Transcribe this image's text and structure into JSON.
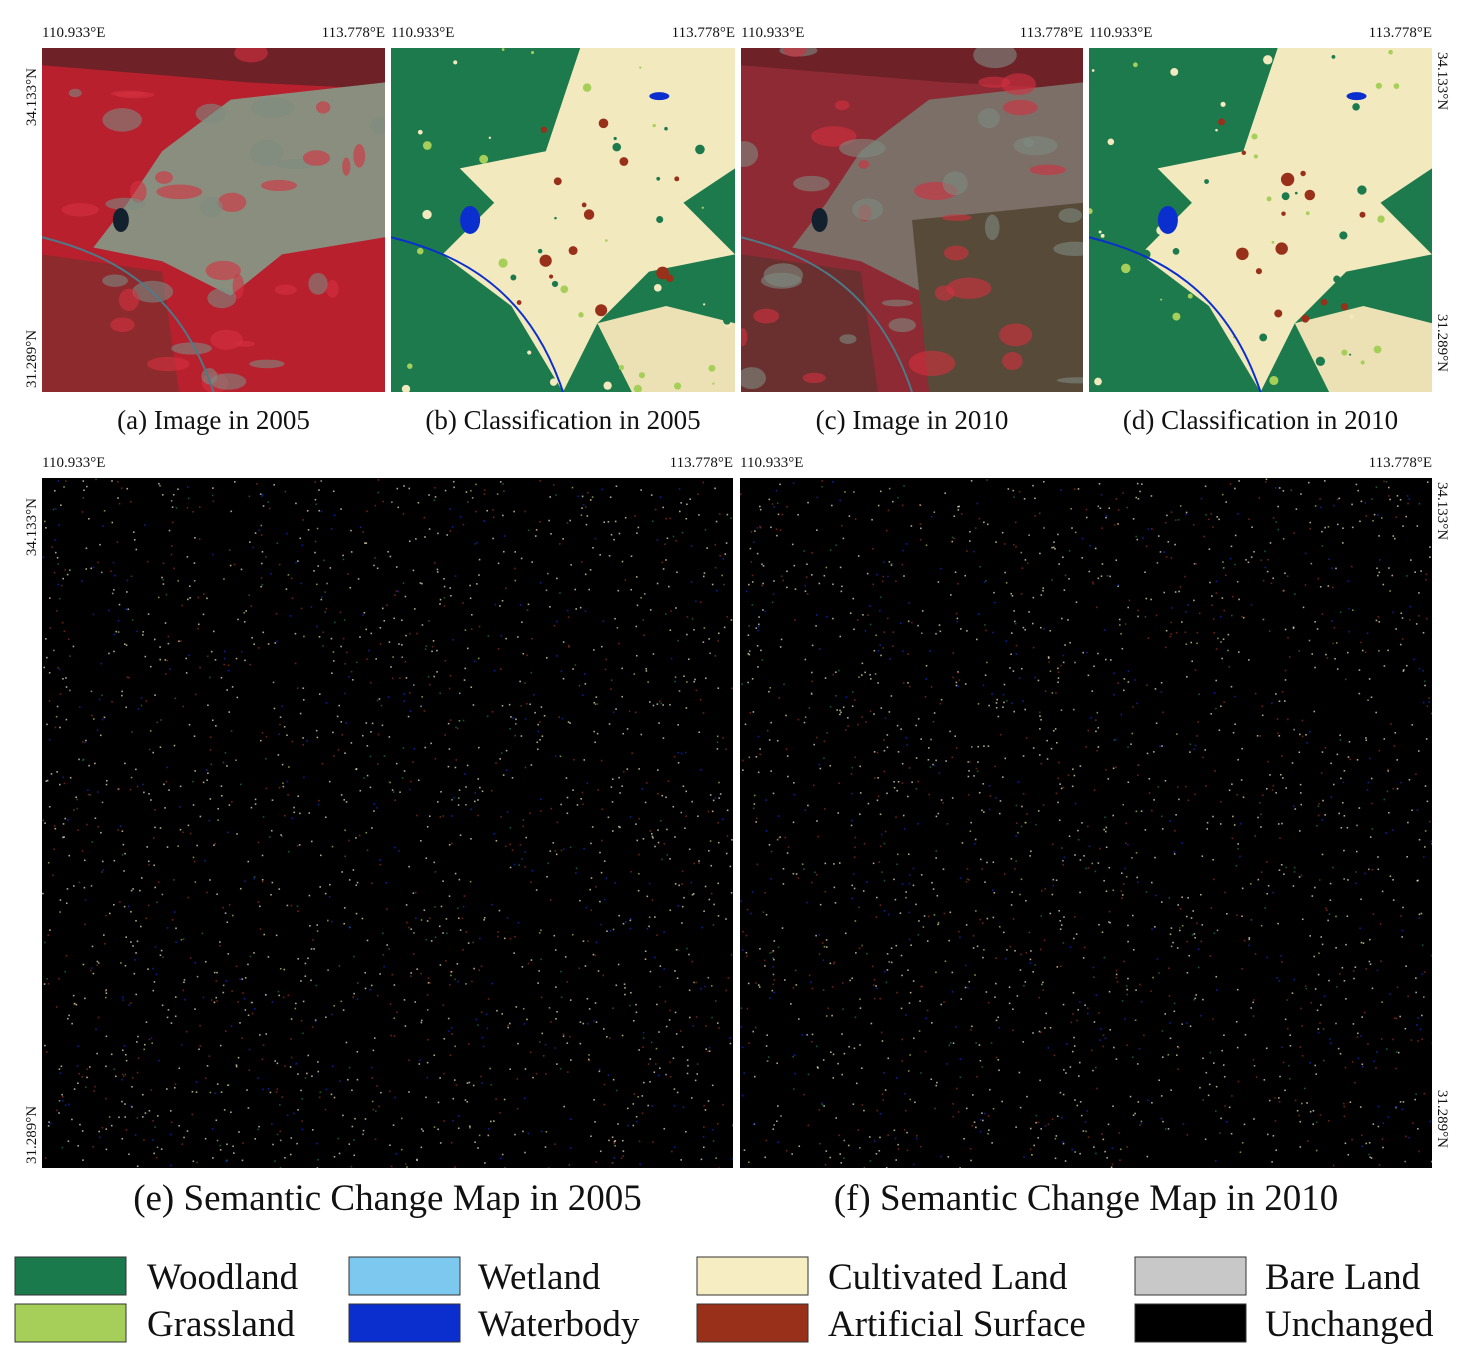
{
  "panels": [
    {
      "caption": "(a) Image in 2005",
      "lon_left": "110.933°E",
      "lon_right": "113.778°E",
      "lat_top": "34.133°N",
      "lat_bottom": "31.289°N"
    },
    {
      "caption": "(b) Classification in 2005",
      "lon_left": "110.933°E",
      "lon_right": "113.778°E"
    },
    {
      "caption": "(c) Image in 2010",
      "lon_left": "110.933°E",
      "lon_right": "113.778°E"
    },
    {
      "caption": "(d) Classification in 2010",
      "lon_left": "110.933°E",
      "lon_right": "113.778°E",
      "lat_top": "34.133°N",
      "lat_bottom": "31.289°N"
    },
    {
      "caption": "(e) Semantic Change Map in 2005",
      "lon_left": "110.933°E",
      "lon_right": "113.778°E",
      "lat_top": "34.133°N",
      "lat_bottom": "31.289°N"
    },
    {
      "caption": "(f) Semantic Change Map in 2010",
      "lon_left": "110.933°E",
      "lon_right": "113.778°E",
      "lat_top": "34.133°N",
      "lat_bottom": "31.289°N"
    }
  ],
  "legend": [
    {
      "label": "Woodland",
      "color": "#1b7a4b"
    },
    {
      "label": "Grassland",
      "color": "#a6cf5a"
    },
    {
      "label": "Wetland",
      "color": "#7cc8ef"
    },
    {
      "label": "Waterbody",
      "color": "#0b2fce"
    },
    {
      "label": "Cultivated Land",
      "color": "#f6eec2"
    },
    {
      "label": "Artificial Surface",
      "color": "#98301a"
    },
    {
      "label": "Bare Land",
      "color": "#c8c8c8"
    },
    {
      "label": "Unchanged",
      "color": "#000000"
    }
  ]
}
